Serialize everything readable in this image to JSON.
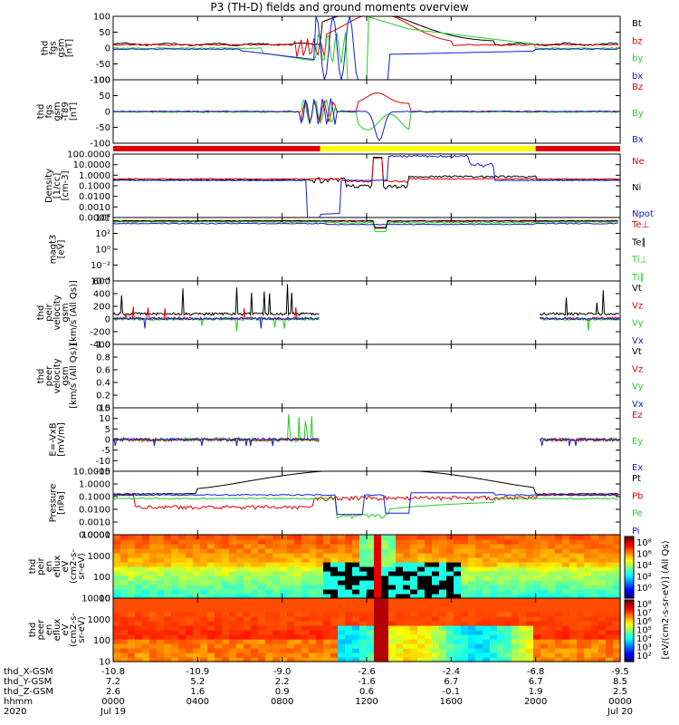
{
  "title": "P3 (TH-D) fields and ground moments overview",
  "colors": {
    "black": "#000000",
    "red": "#e00000",
    "green": "#22cc22",
    "blue": "#1020d0",
    "yellow": "#ffff00"
  },
  "chart_data": {
    "type": "line",
    "x_axis": {
      "tick_rows": [
        {
          "label": "thd_X-GSM",
          "values": [
            "-10.8",
            "-10.9",
            "-9.0",
            "-2.6",
            "-2.4",
            "-6.8",
            "-9.5"
          ]
        },
        {
          "label": "thd_Y-GSM",
          "values": [
            "7.2",
            "5.2",
            "2.2",
            "-1.6",
            "6.7",
            "6.7",
            "8.5"
          ]
        },
        {
          "label": "thd_Z-GSM",
          "values": [
            "2.6",
            "1.6",
            "0.9",
            "0.6",
            "-0.1",
            "1.9",
            "2.5"
          ]
        },
        {
          "label": "hhmm",
          "values": [
            "0000",
            "0400",
            "0800",
            "1200",
            "1600",
            "2000",
            "0000"
          ]
        },
        {
          "label": "2020",
          "values": [
            "Jul 19",
            "",
            "",
            "",
            "",
            "",
            "Jul 20"
          ]
        }
      ],
      "ticks_hours": [
        0,
        4,
        8,
        12,
        16,
        20,
        24
      ]
    },
    "panels": [
      {
        "id": "fgs-gsm",
        "ylabel": [
          "thd",
          "fgs",
          "gsm",
          "[nT]"
        ],
        "ticks": [
          "100",
          "50",
          "0",
          "-50",
          "-100"
        ],
        "ylim": [
          -100,
          100
        ],
        "series": [
          {
            "name": "Bt",
            "color": "black"
          },
          {
            "name": "bz",
            "color": "red"
          },
          {
            "name": "by",
            "color": "green"
          },
          {
            "name": "bx",
            "color": "blue"
          }
        ]
      },
      {
        "id": "fgs-gsm-t89",
        "ylabel": [
          "thd",
          "fgs",
          "gsm",
          "-T89",
          "[nT]"
        ],
        "ticks": [
          "100",
          "50",
          "0",
          "-50",
          "-100"
        ],
        "ylim": [
          -120,
          120
        ],
        "series": [
          {
            "name": "Bz",
            "color": "red"
          },
          {
            "name": "By",
            "color": "green"
          },
          {
            "name": "Bx",
            "color": "blue"
          }
        ]
      },
      {
        "id": "density",
        "ylabel": [
          "Density",
          "[1/cc]",
          "[cm-3]"
        ],
        "ticks": [
          "100.0000",
          "10.0000",
          "1.0000",
          "0.1000",
          "0.0100",
          "0.0010",
          "0.0001"
        ],
        "log": true,
        "series": [
          {
            "name": "Ne",
            "color": "red"
          },
          {
            "name": "Ni",
            "color": "black"
          },
          {
            "name": "Npot",
            "color": "blue"
          }
        ]
      },
      {
        "id": "temperature",
        "ylabel": [
          "magt3",
          "[eV]"
        ],
        "ticks": [
          "10⁴",
          "10²",
          "10⁰",
          "10⁻²",
          "10⁻⁴"
        ],
        "log": true,
        "series": [
          {
            "name": "Te⊥",
            "color": "red"
          },
          {
            "name": "Te∥",
            "color": "black"
          },
          {
            "name": "Ti⊥",
            "color": "green"
          },
          {
            "name": "Ti∥",
            "color": "green"
          }
        ]
      },
      {
        "id": "peir-velocity",
        "ylabel": [
          "thd",
          "peir",
          "velocity",
          "gsm",
          "[km/s (All Qs)]"
        ],
        "ticks": [
          "600",
          "400",
          "200",
          "0",
          "-200",
          "-400"
        ],
        "ylim": [
          -400,
          600
        ],
        "series": [
          {
            "name": "Vt",
            "color": "black"
          },
          {
            "name": "Vz",
            "color": "red"
          },
          {
            "name": "Vy",
            "color": "green"
          },
          {
            "name": "Vx",
            "color": "blue"
          }
        ]
      },
      {
        "id": "peer-velocity",
        "ylabel": [
          "thd",
          "peer",
          "velocity",
          "gsm",
          "[km/s (All Qs)]"
        ],
        "ticks": [
          "1.0",
          "0.8",
          "0.6",
          "0.4",
          "0.2",
          "0.0"
        ],
        "ylim": [
          0,
          1
        ],
        "series": [
          {
            "name": "Vt",
            "color": "black"
          },
          {
            "name": "Vz",
            "color": "red"
          },
          {
            "name": "Vy",
            "color": "green"
          },
          {
            "name": "Vx",
            "color": "blue"
          }
        ]
      },
      {
        "id": "efield",
        "ylabel": [
          "E=-VxB",
          "[mV/m]"
        ],
        "ticks": [
          "15",
          "10",
          "5",
          "0",
          "-5",
          "-10",
          "-15"
        ],
        "ylim": [
          -15,
          15
        ],
        "series": [
          {
            "name": "Ez",
            "color": "red"
          },
          {
            "name": "Ey",
            "color": "green"
          },
          {
            "name": "Ex",
            "color": "blue"
          }
        ]
      },
      {
        "id": "pressure",
        "ylabel": [
          "Pressure",
          "[nPa]"
        ],
        "ticks": [
          "10.0000",
          "1.0000",
          "0.1000",
          "0.0100",
          "0.0010",
          "0.0001"
        ],
        "log": true,
        "series": [
          {
            "name": "Pt",
            "color": "black"
          },
          {
            "name": "Pb",
            "color": "red"
          },
          {
            "name": "Pe",
            "color": "green"
          },
          {
            "name": "Pi",
            "color": "blue"
          }
        ]
      },
      {
        "id": "peir-spectrogram",
        "type": "heatmap",
        "ylabel": [
          "thd",
          "peir",
          "en",
          "eflux",
          "eV",
          "(cm2-s-",
          "sr-eV)"
        ],
        "ticks": [
          "10000",
          "1000",
          "100",
          "10"
        ]
      },
      {
        "id": "peer-spectrogram",
        "type": "heatmap",
        "ylabel": [
          "thd",
          "peer",
          "en",
          "eflux",
          "eV",
          "(cm2-s-",
          "sr-eV)"
        ],
        "ticks": [
          "10000",
          "1000",
          "100",
          "10"
        ]
      }
    ],
    "colorbar": {
      "label": "[eV/(cm2-s-sr-eV)] (All Qs)",
      "ticks_upper": [
        "10⁸",
        "10⁶",
        "10⁴",
        "10²",
        "10⁰"
      ],
      "ticks_lower": [
        "10⁸",
        "10⁷",
        "10⁶",
        "10⁵",
        "10⁴",
        "10³",
        "10²"
      ]
    }
  }
}
